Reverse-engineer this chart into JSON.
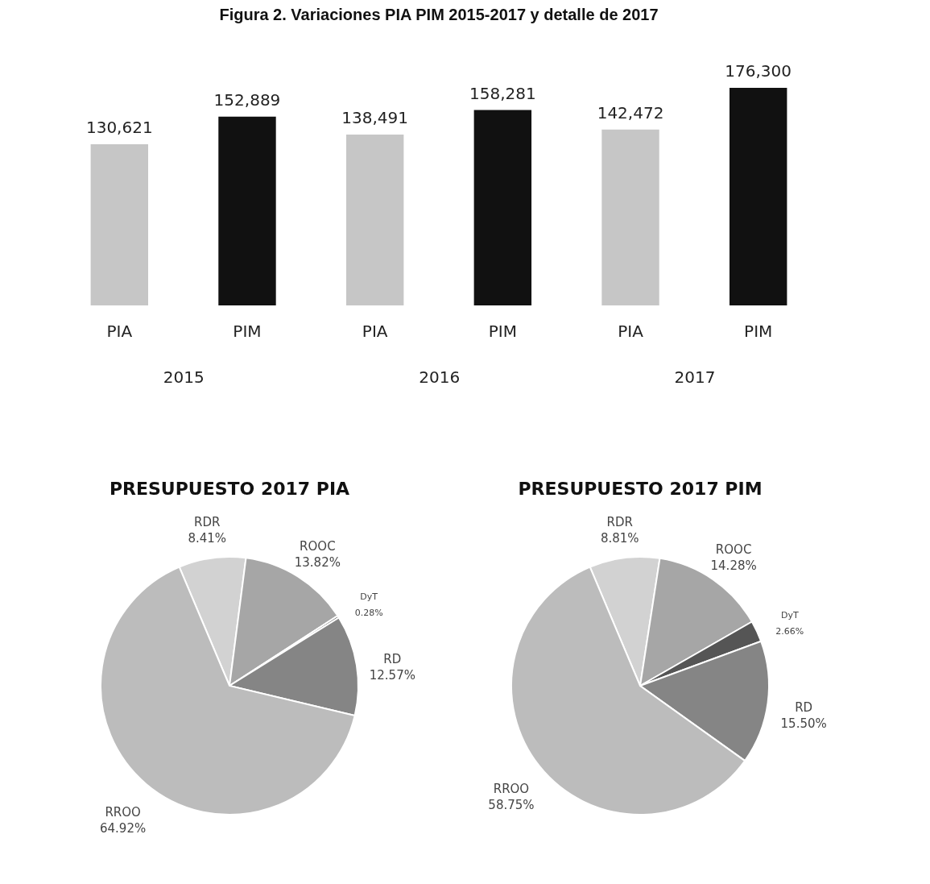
{
  "chart_data": [
    {
      "type": "bar",
      "title": "Figura 2. Variaciones PIA PIM 2015-2017 y detalle de 2017",
      "categories": [
        "PIA",
        "PIM",
        "PIA",
        "PIM",
        "PIA",
        "PIM"
      ],
      "values": [
        130621,
        152889,
        138491,
        158281,
        142472,
        176300
      ],
      "colors": [
        "#c6c6c6",
        "#111111",
        "#c6c6c6",
        "#111111",
        "#c6c6c6",
        "#111111"
      ],
      "value_labels": [
        "130,621",
        "152,889",
        "138,491",
        "158,281",
        "142,472",
        "176,300"
      ],
      "annotations": [
        "2015",
        "2016",
        "2017"
      ]
    },
    {
      "type": "pie",
      "title": "PRESUPUESTO 2017 PIA",
      "categories": [
        "RDR",
        "ROOC",
        "DyT",
        "RD",
        "RROO"
      ],
      "values": [
        8.41,
        13.82,
        0.28,
        12.57,
        64.92
      ],
      "colors": [
        "#d2d2d2",
        "#a6a6a6",
        "#555555",
        "#858585",
        "#bcbcbc"
      ],
      "value_labels": [
        "8.41%",
        "13.82%",
        "0.28%",
        "12.57%",
        "64.92%"
      ]
    },
    {
      "type": "pie",
      "title": "PRESUPUESTO 2017 PIM",
      "categories": [
        "RDR",
        "ROOC",
        "DyT",
        "RD",
        "RROO"
      ],
      "values": [
        8.81,
        14.28,
        2.66,
        15.5,
        58.75
      ],
      "colors": [
        "#d2d2d2",
        "#a6a6a6",
        "#555555",
        "#858585",
        "#bcbcbc"
      ],
      "value_labels": [
        "8.81%",
        "14.28%",
        "2.66%",
        "15.50%",
        "58.75%"
      ]
    }
  ]
}
